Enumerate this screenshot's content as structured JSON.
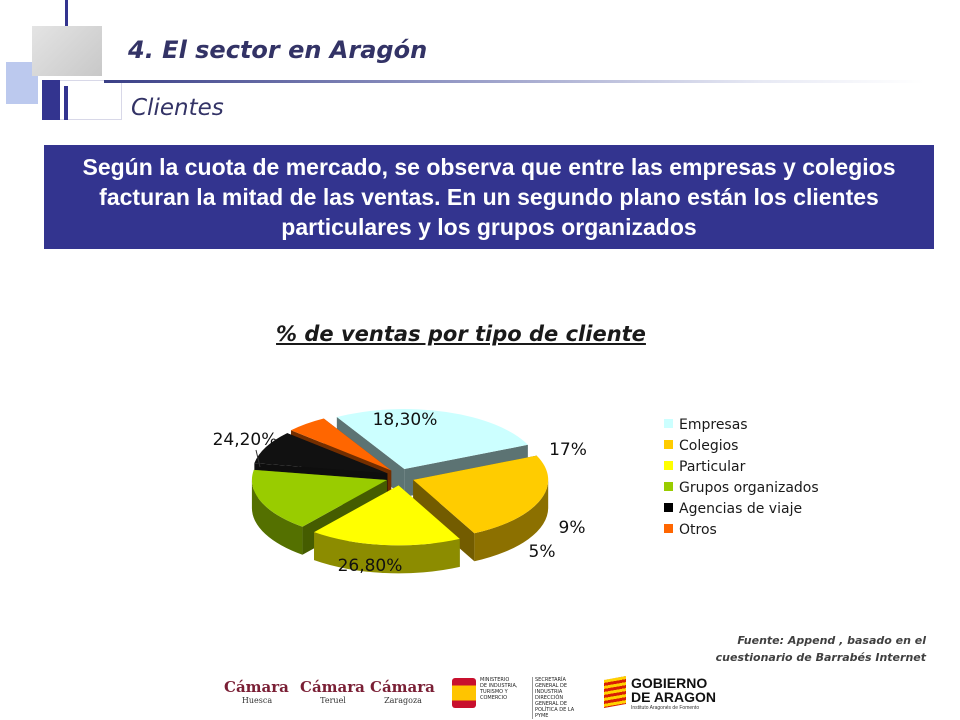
{
  "heading": "4. El sector en Aragón",
  "subheading": "Clientes",
  "summary": "Según la cuota de mercado, se observa que entre las empresas y colegios facturan la mitad de las ventas. En un segundo plano están los clientes particulares y los grupos organizados",
  "chart_data": {
    "type": "pie",
    "title": "% de ventas por tipo de cliente",
    "series": [
      {
        "name": "Empresas",
        "value": 26.8,
        "label": "26,80%",
        "color": "#ccffff"
      },
      {
        "name": "Colegios",
        "value": 24.2,
        "label": "24,20%",
        "color": "#ffcc00"
      },
      {
        "name": "Particular",
        "value": 18.3,
        "label": "18,30%",
        "color": "#ffff00"
      },
      {
        "name": "Grupos organizados",
        "value": 17,
        "label": "17%",
        "color": "#99cc00"
      },
      {
        "name": "Agencias de viaje",
        "value": 9,
        "label": "9%",
        "color": "#000000"
      },
      {
        "name": "Otros",
        "value": 5,
        "label": "5%",
        "color": "#ff6600"
      }
    ],
    "style": "3D exploded pie",
    "legend": "right"
  },
  "source": {
    "line1": "Fuente: Append , basado en el",
    "line2": "cuestionario de Barrabés Internet"
  },
  "logos": {
    "camara_main": "Cámara",
    "camara_huesca": "Huesca",
    "camara_teruel": "Teruel",
    "camara_zaragoza": "Zaragoza",
    "ministerio_1": "MINISTERIO",
    "ministerio_2": "DE INDUSTRIA,",
    "ministerio_3": "TURISMO Y",
    "ministerio_4": "COMERCIO",
    "secretaria_1": "SECRETARÍA GENERAL DE",
    "secretaria_2": "INDUSTRIA",
    "secretaria_3": "DIRECCIÓN GENERAL DE",
    "secretaria_4": "POLÍTICA DE LA PYME",
    "gobierno_1": "GOBIERNO",
    "gobierno_2": "DE ARAGON",
    "gobierno_3": "Instituto Aragonés de Fomento"
  }
}
